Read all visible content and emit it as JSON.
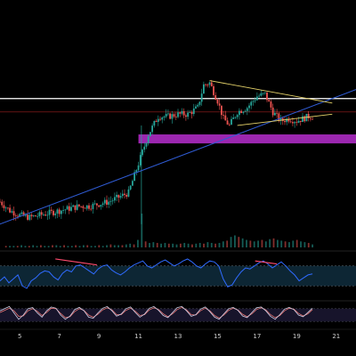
{
  "chart_data": {
    "type": "candlestick",
    "title": "",
    "colors": {
      "background": "#000000",
      "up": "#26a69a",
      "down": "#ef5350",
      "trendline": "#2f5bd3",
      "resistance": "#ffffff",
      "red_level": "#c62828",
      "triangle": "#e6d36a",
      "zone": "#9c27b0",
      "rsi_line": "#2f6bff",
      "rsi_band": "#0e2a3a",
      "divergence": "#ff4b6e",
      "stoch_k": "#cfcfe6",
      "stoch_d": "#e57373"
    },
    "x_axis": {
      "ticks": [
        "5",
        "7",
        "9",
        "11",
        "13",
        "15",
        "17",
        "19",
        "21"
      ],
      "range": [
        4,
        22
      ]
    },
    "price_panel": {
      "ylim": [
        0,
        100
      ],
      "close": [
        {
          "x": 4.0,
          "y": 18
        },
        {
          "x": 4.5,
          "y": 14
        },
        {
          "x": 5.0,
          "y": 12
        },
        {
          "x": 5.5,
          "y": 11
        },
        {
          "x": 6.0,
          "y": 12
        },
        {
          "x": 6.5,
          "y": 13
        },
        {
          "x": 7.0,
          "y": 14
        },
        {
          "x": 7.5,
          "y": 15
        },
        {
          "x": 8.0,
          "y": 16
        },
        {
          "x": 8.5,
          "y": 16
        },
        {
          "x": 9.0,
          "y": 17
        },
        {
          "x": 9.5,
          "y": 18
        },
        {
          "x": 10.0,
          "y": 20
        },
        {
          "x": 10.5,
          "y": 22
        },
        {
          "x": 11.0,
          "y": 35
        },
        {
          "x": 11.5,
          "y": 48
        },
        {
          "x": 12.0,
          "y": 56
        },
        {
          "x": 12.5,
          "y": 56
        },
        {
          "x": 13.0,
          "y": 57
        },
        {
          "x": 13.5,
          "y": 57
        },
        {
          "x": 14.0,
          "y": 60
        },
        {
          "x": 14.3,
          "y": 70
        },
        {
          "x": 14.6,
          "y": 71
        },
        {
          "x": 15.0,
          "y": 63
        },
        {
          "x": 15.3,
          "y": 55
        },
        {
          "x": 15.6,
          "y": 52
        },
        {
          "x": 16.0,
          "y": 58
        },
        {
          "x": 16.5,
          "y": 60
        },
        {
          "x": 17.0,
          "y": 65
        },
        {
          "x": 17.4,
          "y": 66
        },
        {
          "x": 17.8,
          "y": 58
        },
        {
          "x": 18.2,
          "y": 54
        },
        {
          "x": 18.6,
          "y": 55
        },
        {
          "x": 19.0,
          "y": 54
        },
        {
          "x": 19.3,
          "y": 55
        },
        {
          "x": 19.6,
          "y": 56
        },
        {
          "x": 19.8,
          "y": 56
        }
      ],
      "levels": {
        "resistance": 64,
        "red_level": 58
      },
      "zone": {
        "y_low": 44,
        "y_high": 48,
        "x_start": 11.0
      },
      "trendline": {
        "x1": 4.0,
        "y1": 8,
        "x2": 22.0,
        "y2": 68
      },
      "triangle_top": {
        "x1": 14.6,
        "y1": 72,
        "x2": 20.8,
        "y2": 62
      },
      "triangle_bottom": {
        "x1": 16.0,
        "y1": 52,
        "x2": 20.8,
        "y2": 57
      }
    },
    "volume_panel": {
      "values": [
        2,
        2,
        2,
        2,
        3,
        2,
        2,
        3,
        2,
        3,
        2,
        2,
        3,
        3,
        2,
        3,
        2,
        2,
        3,
        2,
        3,
        3,
        2,
        2,
        3,
        2,
        3,
        4,
        3,
        3,
        3,
        4,
        5,
        4,
        10,
        45,
        8,
        6,
        7,
        6,
        5,
        6,
        5,
        5,
        4,
        5,
        6,
        5,
        4,
        5,
        6,
        5,
        7,
        6,
        5,
        6,
        8,
        9,
        14,
        16,
        14,
        12,
        10,
        9,
        8,
        9,
        10,
        8,
        11,
        12,
        10,
        9,
        8,
        7,
        9,
        10,
        8,
        7,
        6,
        4
      ]
    },
    "rsi_panel": {
      "ylim": [
        0,
        100
      ],
      "band": [
        30,
        70
      ],
      "values": [
        40,
        48,
        36,
        44,
        52,
        30,
        25,
        40,
        46,
        55,
        60,
        58,
        48,
        42,
        55,
        62,
        58,
        70,
        72,
        66,
        60,
        54,
        64,
        70,
        72,
        62,
        56,
        52,
        58,
        66,
        72,
        76,
        80,
        70,
        66,
        72,
        78,
        82,
        76,
        70,
        74,
        80,
        84,
        78,
        70,
        66,
        74,
        80,
        78,
        70,
        44,
        28,
        32,
        46,
        58,
        66,
        64,
        70,
        76,
        80,
        74,
        66,
        72,
        78,
        70,
        60,
        52,
        40,
        46,
        52,
        54
      ],
      "divergences": [
        {
          "x1": 6.8,
          "y1": 84,
          "x2": 8.9,
          "y2": 72
        },
        {
          "x1": 16.9,
          "y1": 80,
          "x2": 18.0,
          "y2": 74
        }
      ]
    },
    "stoch_panel": {
      "ylim": [
        0,
        100
      ],
      "k": [
        70,
        80,
        90,
        60,
        30,
        50,
        80,
        85,
        60,
        40,
        70,
        88,
        82,
        50,
        30,
        45,
        75,
        86,
        70,
        40,
        35,
        60,
        82,
        90,
        70,
        45,
        55,
        80,
        88,
        62,
        40,
        55,
        82,
        90,
        72,
        48,
        38,
        62,
        85,
        90,
        70,
        44,
        52,
        78,
        88,
        66,
        40,
        30,
        55,
        80,
        86,
        72,
        46,
        38,
        62,
        84,
        88,
        70,
        44,
        30,
        52,
        78,
        86,
        76,
        50,
        42,
        62,
        82
      ],
      "d": [
        62,
        72,
        82,
        70,
        44,
        46,
        70,
        80,
        68,
        48,
        62,
        82,
        80,
        58,
        38,
        42,
        66,
        80,
        72,
        50,
        40,
        54,
        74,
        84,
        74,
        52,
        52,
        72,
        82,
        68,
        48,
        52,
        74,
        84,
        76,
        56,
        42,
        56,
        76,
        86,
        74,
        52,
        50,
        70,
        82,
        70,
        48,
        36,
        50,
        72,
        82,
        74,
        54,
        42,
        56,
        76,
        84,
        74,
        52,
        38,
        48,
        70,
        82,
        78,
        58,
        46,
        56,
        76
      ]
    }
  }
}
